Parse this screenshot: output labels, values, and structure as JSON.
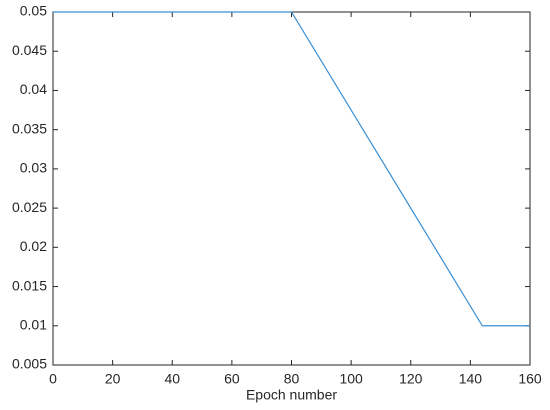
{
  "chart_data": {
    "type": "line",
    "x_label": "Epoch number",
    "x": [
      0,
      80,
      144,
      160
    ],
    "values": [
      0.05,
      0.05,
      0.01,
      0.01
    ],
    "color": "#3a8fd3",
    "xlim": [
      0,
      160
    ],
    "xticks": [
      0,
      20,
      40,
      60,
      80,
      100,
      120,
      140,
      160
    ],
    "ylim": [
      0.005,
      0.05
    ],
    "yticks": [
      0.005,
      0.01,
      0.015,
      0.02,
      0.025,
      0.03,
      0.035,
      0.04,
      0.045,
      0.05
    ],
    "grid": false
  }
}
